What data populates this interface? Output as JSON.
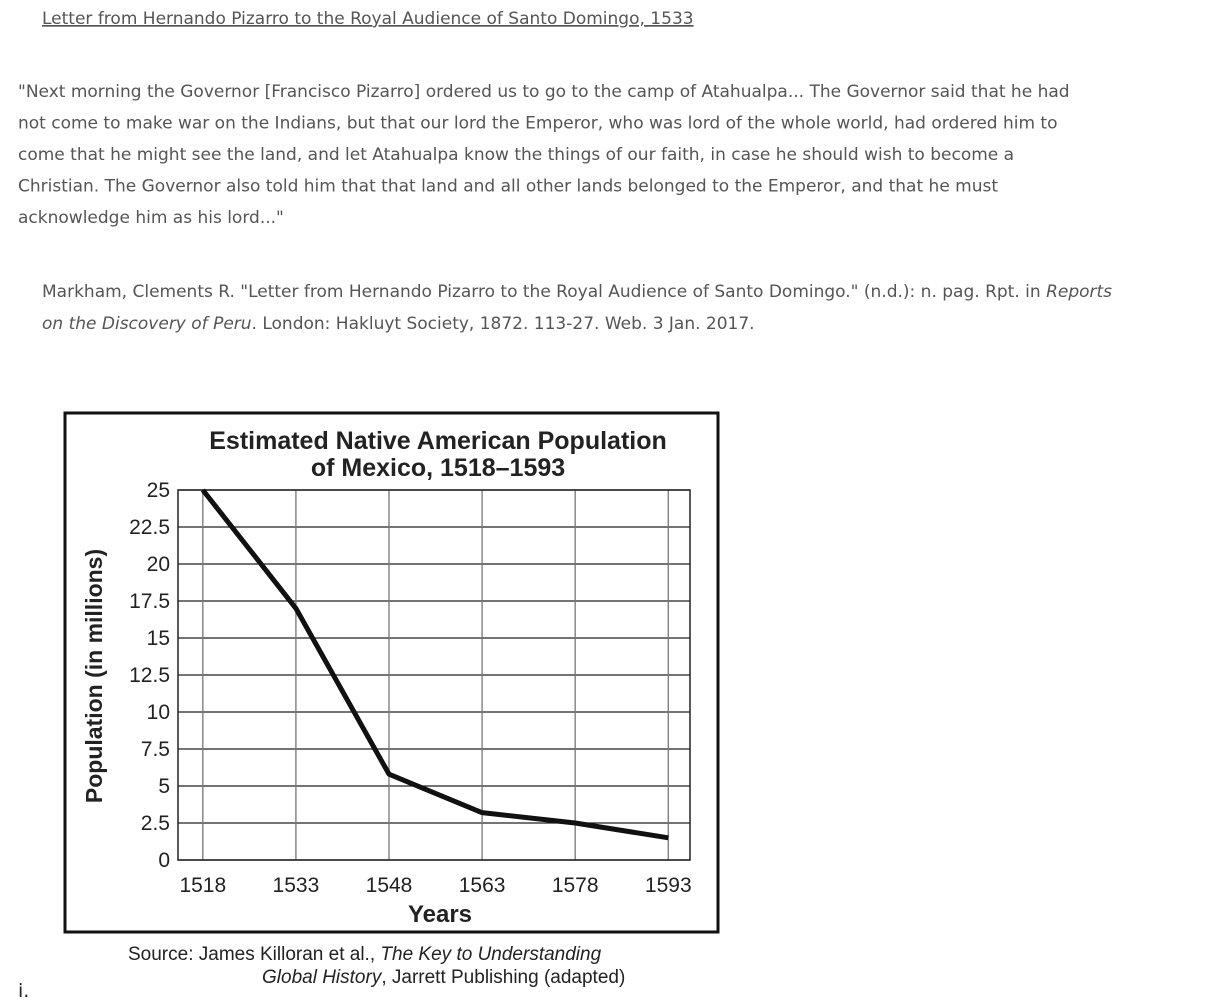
{
  "header": {
    "title": "Letter from Hernando Pizarro to the Royal Audience of Santo Domingo, 1533"
  },
  "quote": {
    "lines": [
      "\"Next morning the Governor [Francisco Pizarro] ordered us to go to the camp of Atahualpa... The Governor said that he had",
      "not come to make war on the Indians, but that our lord the Emperor, who was lord of the whole world, had ordered him to",
      "come that he might see the land, and let Atahualpa know the things of our faith, in case he should wish to become a",
      "Christian. The Governor also told him that that land and all other lands belonged to the Emperor, and that he must",
      "acknowledge him as his lord...\""
    ]
  },
  "citation": {
    "line1": [
      "Markham, Clements R. \"Letter from Hernando Pizarro to the Royal Audience of Santo Domingo.\" (n.d.): n. pag. Rpt. in",
      "Reports"
    ],
    "line2": [
      "on the Discovery of Peru",
      ". London: Hakluyt Society, 1872. 113-27. Web. 3 Jan. 2017."
    ]
  },
  "chart_data": {
    "type": "line",
    "title": [
      "Estimated Native American Population",
      "of Mexico, 1518–1593"
    ],
    "x_label": "Years",
    "y_label": "Population (in millions)",
    "x": [
      1518,
      1533,
      1548,
      1563,
      1578,
      1593
    ],
    "values": [
      25,
      17,
      5.8,
      3.2,
      2.5,
      1.5
    ],
    "color": "#111111",
    "xlim": [
      1514,
      1596.5
    ],
    "ylim": [
      0,
      25
    ],
    "xticks": [
      1518,
      1533,
      1548,
      1563,
      1578,
      1593
    ],
    "yticks": [
      0,
      2.5,
      5,
      7.5,
      10,
      12.5,
      15,
      17.5,
      20,
      22.5,
      25
    ],
    "grid": true,
    "source": {
      "line1": [
        "Source: James Killoran et al.,",
        "The Key to Understanding"
      ],
      "line2": [
        "Global History",
        ", Jarrett Publishing (adapted)"
      ]
    }
  },
  "footer": {
    "marker": "i."
  }
}
